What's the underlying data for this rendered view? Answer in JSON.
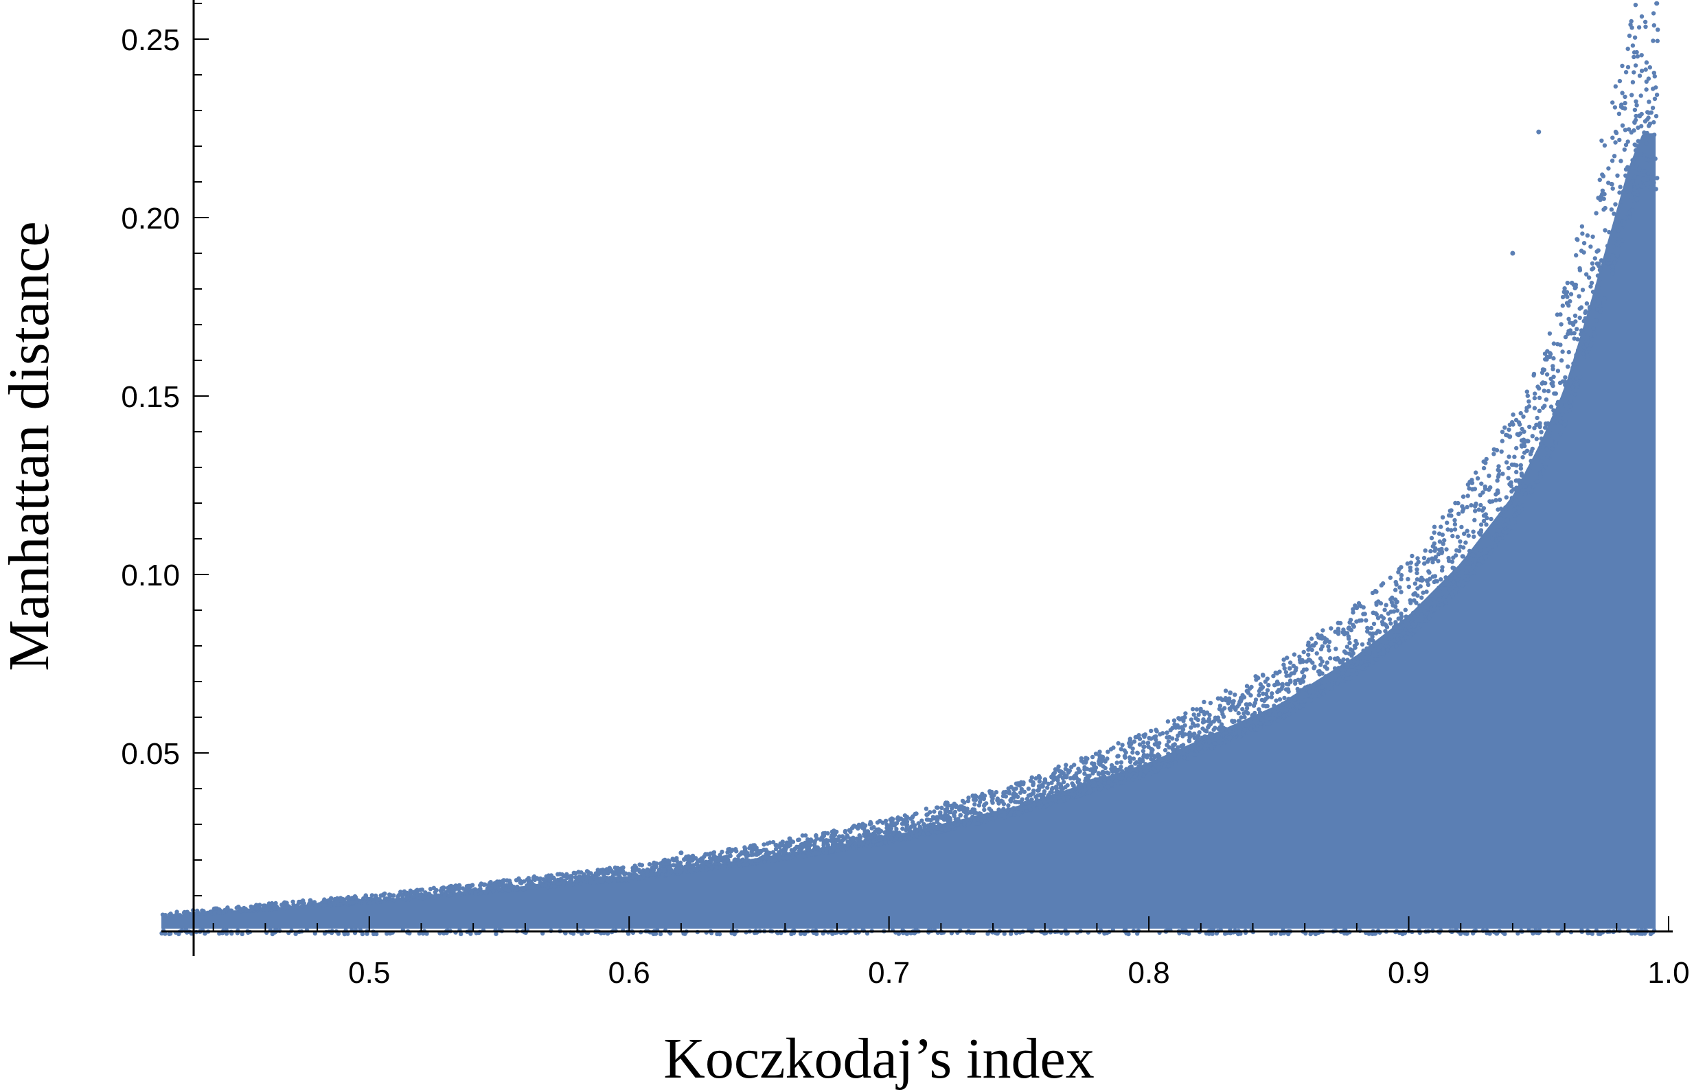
{
  "chart_data": {
    "type": "scatter",
    "title": "",
    "xlabel": "Koczkodaj’s index",
    "ylabel": "Manhattan distance",
    "xlim": [
      0.42,
      1.0
    ],
    "ylim": [
      0.0,
      0.26
    ],
    "x_ticks": [
      "0.5",
      "0.6",
      "0.7",
      "0.8",
      "0.9",
      "1.0"
    ],
    "x_tick_values": [
      0.5,
      0.6,
      0.7,
      0.8,
      0.9,
      1.0
    ],
    "x_minor_step": 0.02,
    "y_ticks": [
      "0.05",
      "0.10",
      "0.15",
      "0.20",
      "0.25"
    ],
    "y_tick_values": [
      0.05,
      0.1,
      0.15,
      0.2,
      0.25
    ],
    "y_minor_step": 0.01,
    "marker_color": "#5b7fb4",
    "grid": false,
    "legend": "none",
    "series": [
      {
        "name": "",
        "upper_envelope": {
          "x": [
            0.42,
            0.45,
            0.5,
            0.55,
            0.6,
            0.65,
            0.7,
            0.75,
            0.8,
            0.85,
            0.88,
            0.9,
            0.92,
            0.94,
            0.95,
            0.96,
            0.97,
            0.98,
            0.985,
            0.99,
            0.995
          ],
          "y": [
            0.005,
            0.007,
            0.01,
            0.014,
            0.018,
            0.024,
            0.031,
            0.041,
            0.055,
            0.074,
            0.09,
            0.103,
            0.12,
            0.142,
            0.158,
            0.177,
            0.205,
            0.235,
            0.25,
            0.26,
            0.26
          ]
        },
        "outliers": [
          {
            "x": 0.95,
            "y": 0.224
          },
          {
            "x": 0.73,
            "y": 0.033
          },
          {
            "x": 0.62,
            "y": 0.022
          },
          {
            "x": 0.94,
            "y": 0.19
          }
        ]
      }
    ]
  }
}
